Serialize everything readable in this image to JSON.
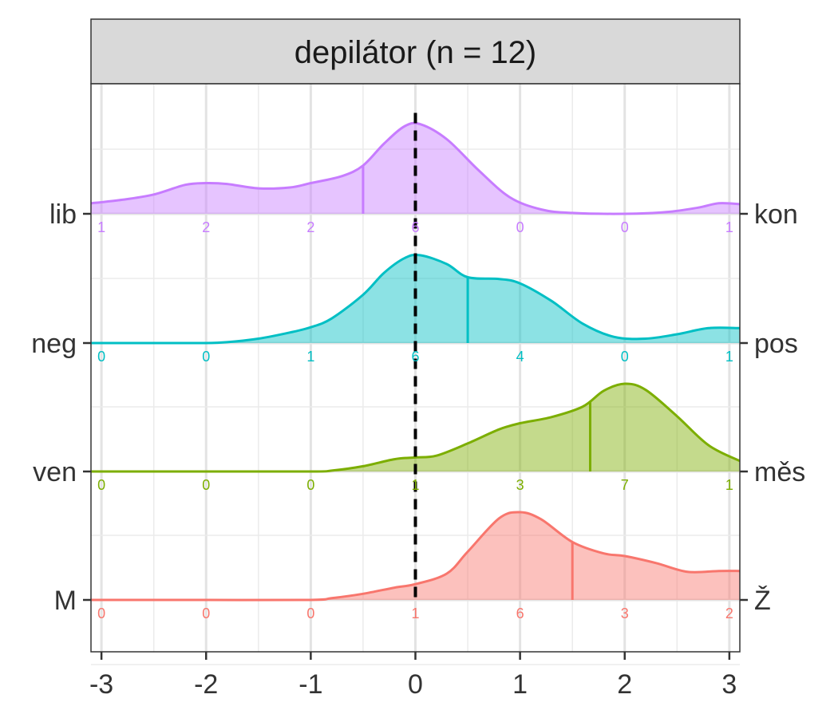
{
  "chart_data": {
    "type": "ridgeline",
    "title": "depilátor (n = 12)",
    "x_ticks": [
      -3,
      -2,
      -1,
      0,
      1,
      2,
      3
    ],
    "xlim": [
      -3.1,
      3.1
    ],
    "reference_line_x": 0,
    "rows": [
      {
        "left_label": "lib",
        "right_label": "kon",
        "color": "#c77cff",
        "mean": -0.5,
        "counts": [
          {
            "x": -3,
            "n": "1"
          },
          {
            "x": -2,
            "n": "2"
          },
          {
            "x": -1,
            "n": "2"
          },
          {
            "x": 0,
            "n": "6"
          },
          {
            "x": 1,
            "n": "0"
          },
          {
            "x": 2,
            "n": "0"
          },
          {
            "x": 3,
            "n": "1"
          }
        ],
        "density": [
          [
            -3.1,
            0.12
          ],
          [
            -2.8,
            0.16
          ],
          [
            -2.5,
            0.22
          ],
          [
            -2.2,
            0.33
          ],
          [
            -2.0,
            0.35
          ],
          [
            -1.8,
            0.34
          ],
          [
            -1.5,
            0.29
          ],
          [
            -1.2,
            0.3
          ],
          [
            -1.0,
            0.35
          ],
          [
            -0.7,
            0.43
          ],
          [
            -0.5,
            0.55
          ],
          [
            -0.3,
            0.8
          ],
          [
            -0.1,
            1.0
          ],
          [
            0.05,
            1.02
          ],
          [
            0.3,
            0.85
          ],
          [
            0.6,
            0.5
          ],
          [
            0.9,
            0.19
          ],
          [
            1.2,
            0.05
          ],
          [
            1.5,
            0.01
          ],
          [
            2.0,
            0.0
          ],
          [
            2.4,
            0.02
          ],
          [
            2.7,
            0.07
          ],
          [
            2.9,
            0.12
          ],
          [
            3.1,
            0.11
          ]
        ]
      },
      {
        "left_label": "neg",
        "right_label": "pos",
        "color": "#00bfc4",
        "mean": 0.5,
        "counts": [
          {
            "x": -3,
            "n": "0"
          },
          {
            "x": -2,
            "n": "0"
          },
          {
            "x": -1,
            "n": "1"
          },
          {
            "x": 0,
            "n": "6"
          },
          {
            "x": 1,
            "n": "4"
          },
          {
            "x": 2,
            "n": "0"
          },
          {
            "x": 3,
            "n": "1"
          }
        ],
        "density": [
          [
            -3.1,
            0.0
          ],
          [
            -2.5,
            0.0
          ],
          [
            -2.0,
            0.0
          ],
          [
            -1.8,
            0.01
          ],
          [
            -1.5,
            0.05
          ],
          [
            -1.2,
            0.12
          ],
          [
            -1.0,
            0.18
          ],
          [
            -0.8,
            0.28
          ],
          [
            -0.5,
            0.55
          ],
          [
            -0.3,
            0.8
          ],
          [
            -0.1,
            0.97
          ],
          [
            0.05,
            1.0
          ],
          [
            0.3,
            0.9
          ],
          [
            0.5,
            0.75
          ],
          [
            0.8,
            0.73
          ],
          [
            1.0,
            0.68
          ],
          [
            1.3,
            0.48
          ],
          [
            1.6,
            0.22
          ],
          [
            1.9,
            0.07
          ],
          [
            2.2,
            0.05
          ],
          [
            2.5,
            0.1
          ],
          [
            2.8,
            0.17
          ],
          [
            3.1,
            0.17
          ]
        ]
      },
      {
        "left_label": "ven",
        "right_label": "měs",
        "color": "#7cae00",
        "mean": 1.67,
        "counts": [
          {
            "x": -3,
            "n": "0"
          },
          {
            "x": -2,
            "n": "0"
          },
          {
            "x": -1,
            "n": "0"
          },
          {
            "x": 0,
            "n": "1"
          },
          {
            "x": 1,
            "n": "3"
          },
          {
            "x": 2,
            "n": "7"
          },
          {
            "x": 3,
            "n": "1"
          }
        ],
        "density": [
          [
            -3.1,
            0.0
          ],
          [
            -2.0,
            0.0
          ],
          [
            -1.0,
            0.0
          ],
          [
            -0.8,
            0.01
          ],
          [
            -0.5,
            0.06
          ],
          [
            -0.2,
            0.14
          ],
          [
            0.0,
            0.16
          ],
          [
            0.2,
            0.18
          ],
          [
            0.5,
            0.32
          ],
          [
            0.8,
            0.48
          ],
          [
            1.0,
            0.55
          ],
          [
            1.3,
            0.62
          ],
          [
            1.6,
            0.74
          ],
          [
            1.8,
            0.92
          ],
          [
            2.0,
            1.0
          ],
          [
            2.2,
            0.93
          ],
          [
            2.5,
            0.63
          ],
          [
            2.8,
            0.3
          ],
          [
            3.1,
            0.12
          ]
        ]
      },
      {
        "left_label": "M",
        "right_label": "Ž",
        "color": "#f8766d",
        "mean": 1.5,
        "counts": [
          {
            "x": -3,
            "n": "0"
          },
          {
            "x": -2,
            "n": "0"
          },
          {
            "x": -1,
            "n": "0"
          },
          {
            "x": 0,
            "n": "1"
          },
          {
            "x": 1,
            "n": "6"
          },
          {
            "x": 2,
            "n": "3"
          },
          {
            "x": 3,
            "n": "2"
          }
        ],
        "density": [
          [
            -3.1,
            0.0
          ],
          [
            -2.0,
            0.0
          ],
          [
            -1.0,
            0.0
          ],
          [
            -0.8,
            0.02
          ],
          [
            -0.5,
            0.07
          ],
          [
            -0.2,
            0.14
          ],
          [
            0.0,
            0.18
          ],
          [
            0.3,
            0.3
          ],
          [
            0.5,
            0.55
          ],
          [
            0.8,
            0.93
          ],
          [
            1.0,
            1.0
          ],
          [
            1.2,
            0.92
          ],
          [
            1.5,
            0.66
          ],
          [
            1.8,
            0.53
          ],
          [
            2.0,
            0.5
          ],
          [
            2.3,
            0.42
          ],
          [
            2.6,
            0.32
          ],
          [
            2.9,
            0.33
          ],
          [
            3.1,
            0.33
          ]
        ]
      }
    ]
  }
}
